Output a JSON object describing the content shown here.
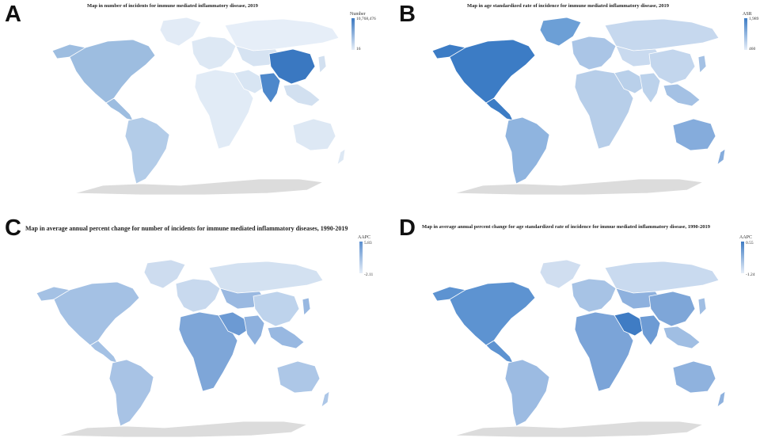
{
  "panels": [
    {
      "letter": "A",
      "title": "Map in number of incidents for immune mediated inflammatory disease, 2019",
      "legend": {
        "title": "Number",
        "max": "10,768,476",
        "min": "16"
      },
      "colors": {
        "na": "#9dbde0",
        "greenland": "#e2ebf6",
        "sa": "#b3cce8",
        "eu": "#dde8f4",
        "russia": "#e6eef8",
        "africa": "#e1ebf6",
        "me": "#d8e5f3",
        "asia": "#d6e3f2",
        "china": "#3a78c1",
        "india": "#4e88cb",
        "sea": "#d2e0f0",
        "aus": "#dde8f4",
        "antarctica": "#dcdcdc"
      }
    },
    {
      "letter": "B",
      "title": "Map in age standardized rate of incidence for immune mediated inflammatory disease, 2019",
      "legend": {
        "title": "ASR",
        "max": "1,989",
        "min": "460"
      },
      "colors": {
        "na": "#3c7cc5",
        "greenland": "#6c9fd6",
        "sa": "#8fb4df",
        "eu": "#aac5e6",
        "russia": "#c6d8ee",
        "africa": "#b7cee9",
        "me": "#b9d0ea",
        "asia": "#c9daef",
        "china": "#c3d6ed",
        "india": "#bcd2eb",
        "sea": "#a4c1e4",
        "aus": "#85acdc",
        "antarctica": "#dcdcdc"
      }
    },
    {
      "letter": "C",
      "title": "Map in average annual percent change for number of incidents for immune mediated inflammatory diseases, 1990-2019",
      "legend": {
        "title": "AAPC",
        "max": "5.83",
        "min": "-2.11"
      },
      "colors": {
        "na": "#a4c1e4",
        "greenland": "#cddcef",
        "sa": "#a8c3e5",
        "eu": "#c8d9ee",
        "russia": "#d3e1f1",
        "africa": "#7ea6d8",
        "me": "#6c9ad3",
        "asia": "#9ab9e1",
        "china": "#bed3ec",
        "india": "#8eb1de",
        "sea": "#98b8e1",
        "aus": "#adc7e7",
        "antarctica": "#dcdcdc"
      }
    },
    {
      "letter": "D",
      "title": "Map in average annual percent change for age standardized rate of incidence for immue mediated inflammatory disease, 1990-2019",
      "legend": {
        "title": "AAPC",
        "max": "0.55",
        "min": "-1.24"
      },
      "colors": {
        "na": "#5d93d1",
        "greenland": "#d0def0",
        "sa": "#9cbbe2",
        "eu": "#a7c3e5",
        "russia": "#c9daef",
        "africa": "#7ba4d8",
        "me": "#3f7cc4",
        "asia": "#8eb1de",
        "china": "#7ea6d8",
        "india": "#6d9bd4",
        "sea": "#a0bee3",
        "aus": "#8fb2de",
        "antarctica": "#dcdcdc"
      }
    }
  ]
}
